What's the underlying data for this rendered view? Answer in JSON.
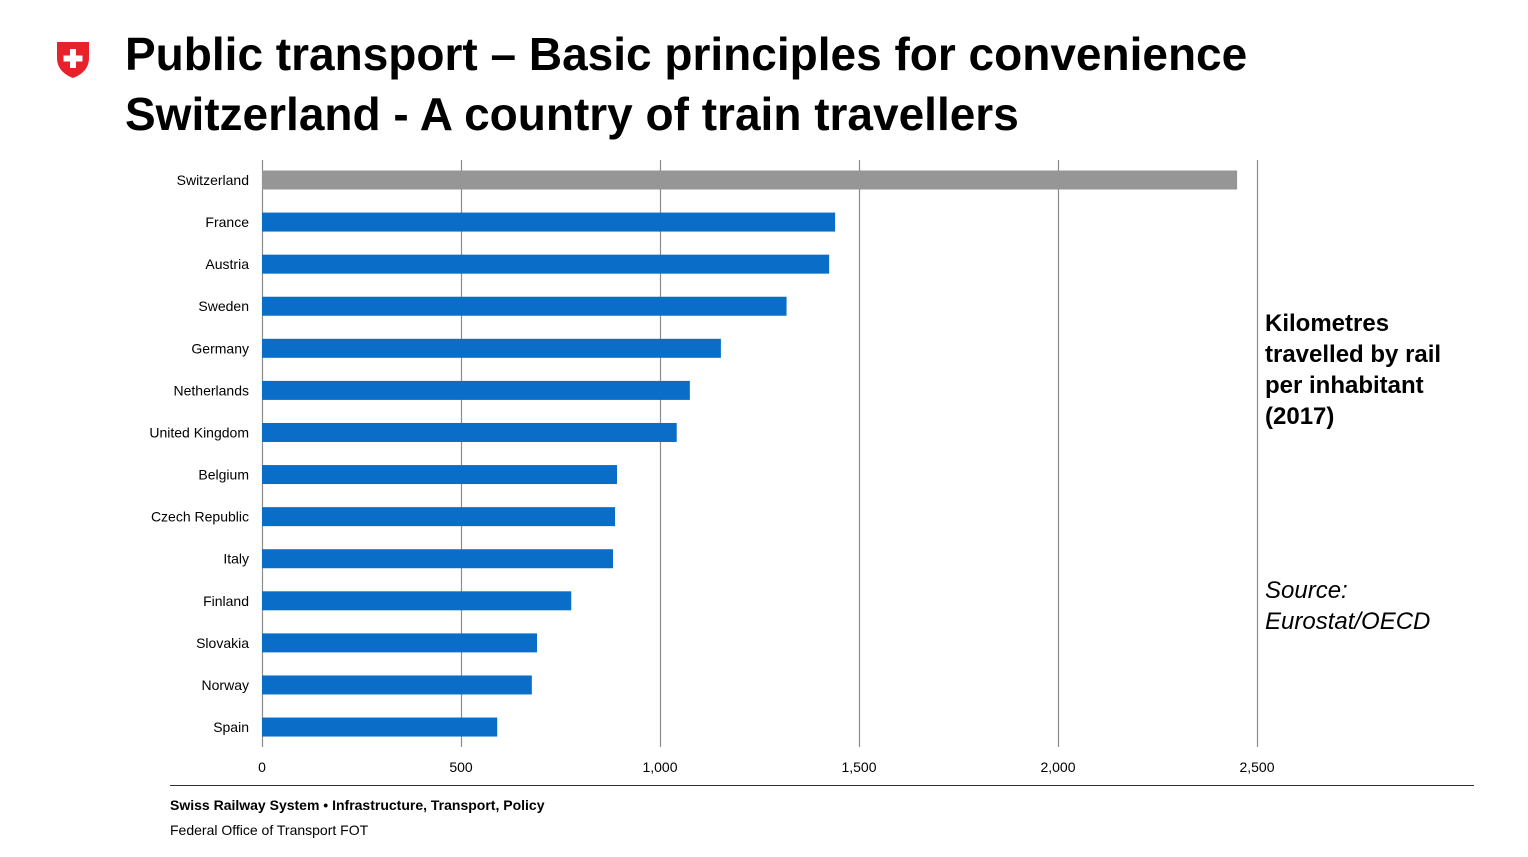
{
  "header": {
    "title_line1": "Public transport – Basic principles for convenience",
    "title_line2": "Switzerland - A country of train travellers"
  },
  "side_label": {
    "line1": "Kilometres",
    "line2": "travelled by rail",
    "line3": "per inhabitant",
    "line4": "(2017)"
  },
  "source": {
    "line1": "Source:",
    "line2": "Eurostat/OECD"
  },
  "footer": {
    "line1": "Swiss Railway System • Infrastructure, Transport, Policy",
    "line2": "Federal Office of Transport FOT"
  },
  "colors": {
    "highlight_bar": "#969696",
    "bar": "#0a6ec8",
    "grid": "#8c8c8c",
    "logo_red": "#e8212b"
  },
  "chart_data": {
    "type": "bar",
    "orientation": "horizontal",
    "categories": [
      "Switzerland",
      "France",
      "Austria",
      "Sweden",
      "Germany",
      "Netherlands",
      "United Kingdom",
      "Belgium",
      "Czech Republic",
      "Italy",
      "Finland",
      "Slovakia",
      "Norway",
      "Spain"
    ],
    "values": [
      2450,
      1440,
      1425,
      1318,
      1153,
      1075,
      1042,
      892,
      887,
      882,
      777,
      691,
      678,
      591
    ],
    "highlight": "Switzerland",
    "xlim": [
      0,
      2500
    ],
    "xticks": [
      0,
      500,
      1000,
      1500,
      2000,
      2500
    ],
    "xtick_labels": [
      "0",
      "500",
      "1,000",
      "1,500",
      "2,000",
      "2,500"
    ],
    "grid": "vertical",
    "title": "",
    "xlabel": "",
    "ylabel": ""
  }
}
